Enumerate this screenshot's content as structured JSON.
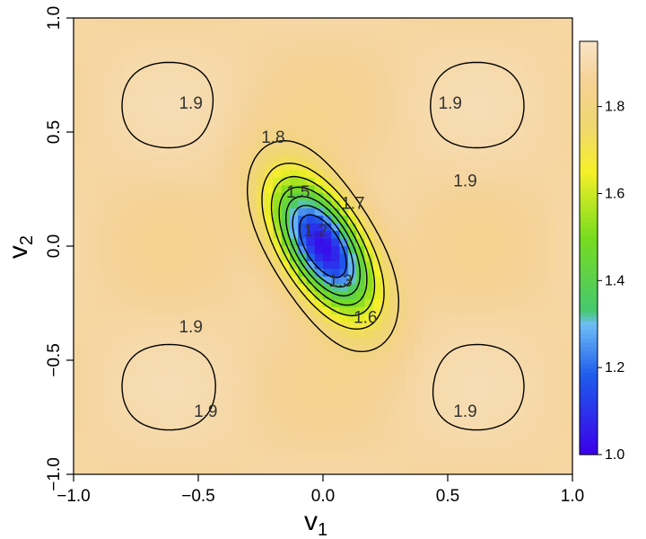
{
  "chart_data": {
    "type": "heatmap",
    "xlabel": "v",
    "xlabel_sub": "1",
    "ylabel": "v",
    "ylabel_sub": "2",
    "xlim": [
      -1.0,
      1.0
    ],
    "ylim": [
      -1.0,
      1.0
    ],
    "x_ticks": [
      -1.0,
      -0.5,
      0.0,
      0.5,
      1.0
    ],
    "x_tick_labels": [
      "−1.0",
      "−0.5",
      "0.0",
      "0.5",
      "1.0"
    ],
    "y_ticks": [
      -1.0,
      -0.5,
      0.0,
      0.5,
      1.0
    ],
    "y_tick_labels": [
      "−1.0",
      "−0.5",
      "0.0",
      "0.5",
      "1.0"
    ],
    "colorbar": {
      "range": [
        1.0,
        1.95
      ],
      "ticks": [
        1.0,
        1.2,
        1.4,
        1.6,
        1.8
      ],
      "tick_labels": [
        "1.0",
        "1.2",
        "1.4",
        "1.6",
        "1.8"
      ],
      "placement": "right"
    },
    "contour_levels": [
      1.2,
      1.3,
      1.4,
      1.5,
      1.6,
      1.7,
      1.8,
      1.9
    ],
    "contour_labels": [
      {
        "text": "1.9",
        "x": -0.53,
        "y": 0.63
      },
      {
        "text": "1.9",
        "x": 0.51,
        "y": 0.63
      },
      {
        "text": "1.9",
        "x": 0.57,
        "y": 0.29
      },
      {
        "text": "1.9",
        "x": -0.53,
        "y": -0.35
      },
      {
        "text": "1.9",
        "x": -0.47,
        "y": -0.72
      },
      {
        "text": "1.9",
        "x": 0.57,
        "y": -0.72
      },
      {
        "text": "1.8",
        "x": -0.2,
        "y": 0.48
      },
      {
        "text": "1.7",
        "x": 0.12,
        "y": 0.19
      },
      {
        "text": "1.6",
        "x": 0.17,
        "y": -0.31
      },
      {
        "text": "1.5",
        "x": -0.1,
        "y": 0.24
      },
      {
        "text": "1.3",
        "x": 0.07,
        "y": -0.15
      },
      {
        "text": "1.2",
        "x": -0.03,
        "y": 0.07
      }
    ]
  }
}
